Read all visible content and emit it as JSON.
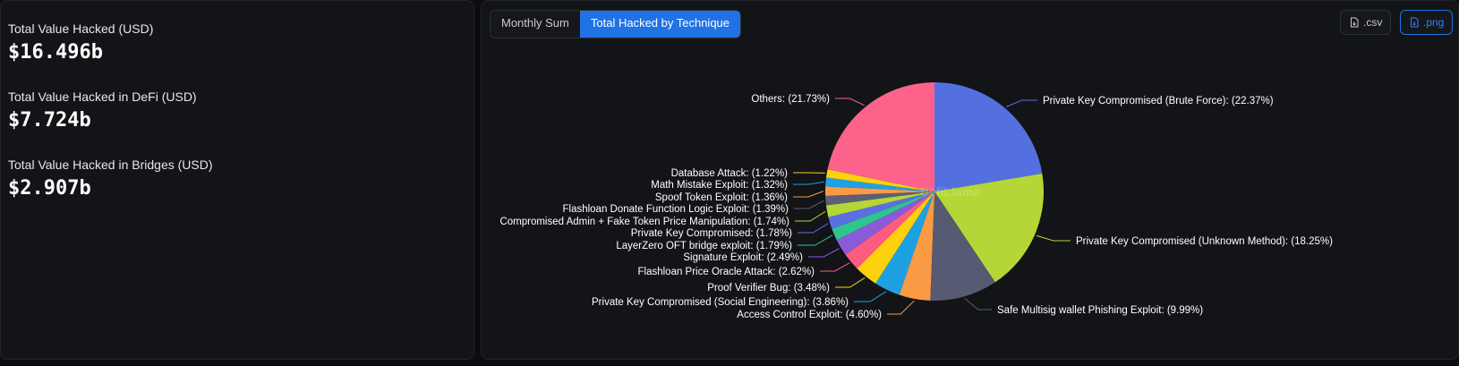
{
  "stats": [
    {
      "label": "Total Value Hacked (USD)",
      "value": "$16.496b"
    },
    {
      "label": "Total Value Hacked in DeFi (USD)",
      "value": "$7.724b"
    },
    {
      "label": "Total Value Hacked in Bridges (USD)",
      "value": "$2.907b"
    }
  ],
  "tabs": [
    {
      "label": "Monthly Sum",
      "active": false
    },
    {
      "label": "Total Hacked by Technique",
      "active": true
    }
  ],
  "downloads": {
    "csv_label": ".csv",
    "png_label": ".png"
  },
  "watermark": "DefiLlama",
  "chart_data": {
    "type": "pie",
    "slices": [
      {
        "label": "Private Key Compromised (Brute Force): (22.37%)",
        "value": 22.37,
        "color": "#5470e0"
      },
      {
        "label": "Private Key Compromised (Unknown Method): (18.25%)",
        "value": 18.25,
        "color": "#b5d637"
      },
      {
        "label": "Safe Multisig wallet Phishing Exploit: (9.99%)",
        "value": 9.99,
        "color": "#565a72"
      },
      {
        "label": "Access Control Exploit: (4.60%)",
        "value": 4.6,
        "color": "#fa9a44"
      },
      {
        "label": "Private Key Compromised (Social Engineering): (3.86%)",
        "value": 3.86,
        "color": "#1ea1e3"
      },
      {
        "label": "Proof Verifier Bug: (3.48%)",
        "value": 3.48,
        "color": "#fdd10b"
      },
      {
        "label": "Flashloan Price Oracle Attack: (2.62%)",
        "value": 2.62,
        "color": "#fd5c80"
      },
      {
        "label": "Signature Exploit: (2.49%)",
        "value": 2.49,
        "color": "#8a5bd8"
      },
      {
        "label": "LayerZero OFT bridge exploit: (1.79%)",
        "value": 1.79,
        "color": "#2fc58f"
      },
      {
        "label": "Private Key Compromised: (1.78%)",
        "value": 1.78,
        "color": "#5b6fe5"
      },
      {
        "label": "Compromised Admin + Fake Token Price Manipulation: (1.74%)",
        "value": 1.74,
        "color": "#b5d637"
      },
      {
        "label": "Flashloan Donate Function Logic Exploit: (1.39%)",
        "value": 1.39,
        "color": "#5b5f77"
      },
      {
        "label": "Spoof Token Exploit: (1.36%)",
        "value": 1.36,
        "color": "#fa9a44"
      },
      {
        "label": "Math Mistake Exploit: (1.32%)",
        "value": 1.32,
        "color": "#1ea1e3"
      },
      {
        "label": "Database Attack: (1.22%)",
        "value": 1.22,
        "color": "#fdd10b"
      },
      {
        "label": "Others: (21.73%)",
        "value": 21.73,
        "color": "#fd628a"
      }
    ]
  }
}
